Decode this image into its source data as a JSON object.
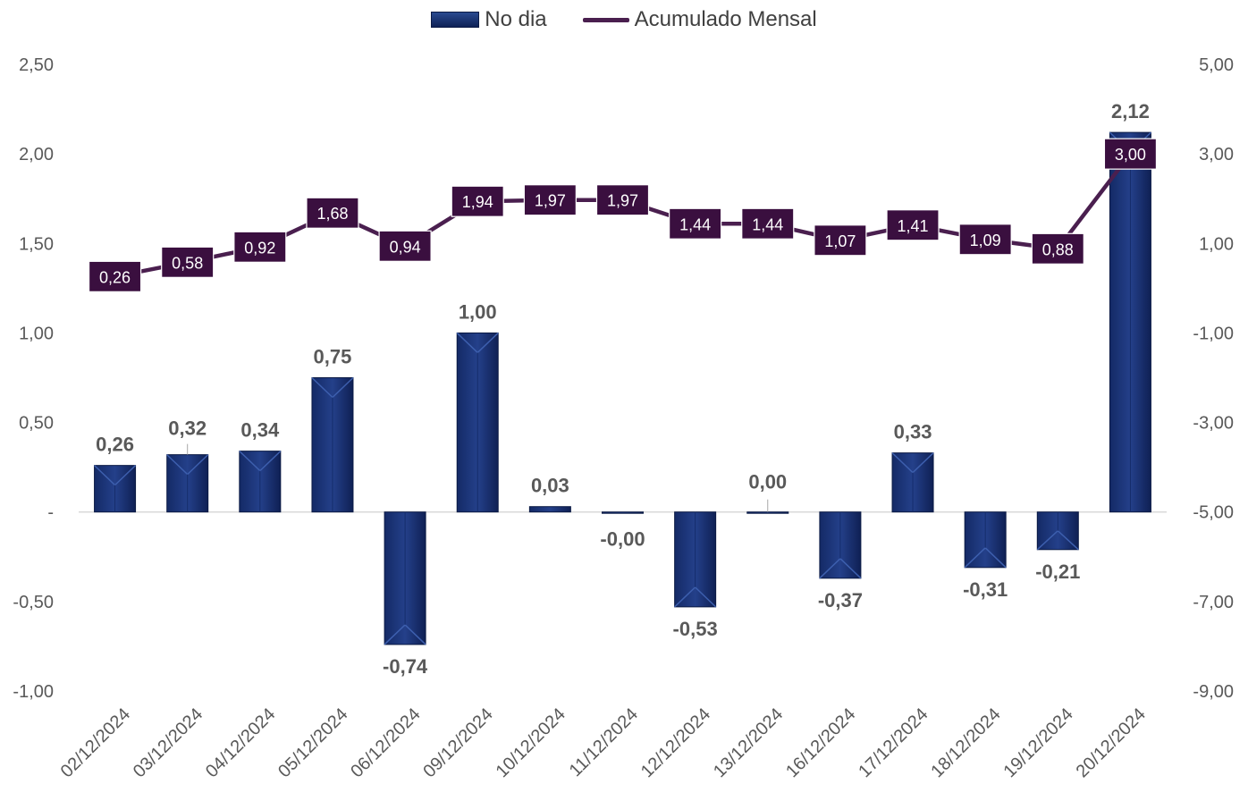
{
  "chart_data": {
    "type": "bar",
    "categories": [
      "02/12/2024",
      "03/12/2024",
      "04/12/2024",
      "05/12/2024",
      "06/12/2024",
      "09/12/2024",
      "10/12/2024",
      "11/12/2024",
      "12/12/2024",
      "13/12/2024",
      "16/12/2024",
      "17/12/2024",
      "18/12/2024",
      "19/12/2024",
      "20/12/2024"
    ],
    "series": [
      {
        "name": "No dia",
        "type": "bar",
        "axis": "left",
        "values": [
          0.26,
          0.32,
          0.34,
          0.75,
          -0.74,
          1.0,
          0.03,
          -0.005,
          -0.53,
          0.0,
          -0.37,
          0.33,
          -0.31,
          -0.21,
          2.12
        ],
        "labels": [
          "0,26",
          "0,32",
          "0,34",
          "0,75",
          "-0,74",
          "1,00",
          "0,03",
          "-0,00",
          "-0,53",
          "0,00",
          "-0,37",
          "0,33",
          "-0,31",
          "-0,21",
          "2,12"
        ],
        "color": "#1b3272"
      },
      {
        "name": "Acumulado Mensal",
        "type": "line",
        "axis": "right",
        "values": [
          0.26,
          0.58,
          0.92,
          1.68,
          0.94,
          1.94,
          1.97,
          1.97,
          1.44,
          1.44,
          1.07,
          1.41,
          1.09,
          0.88,
          3.0
        ],
        "labels": [
          "0,26",
          "0,58",
          "0,92",
          "1,68",
          "0,94",
          "1,94",
          "1,97",
          "1,97",
          "1,44",
          "1,44",
          "1,07",
          "1,41",
          "1,09",
          "0,88",
          "3,00"
        ],
        "color": "#4a1f4f"
      }
    ],
    "y_left": {
      "ylim": [
        -1.0,
        2.5
      ],
      "ticks": [
        2.5,
        2.0,
        1.5,
        1.0,
        0.5,
        0,
        -0.5,
        -1.0
      ],
      "tick_labels": [
        "2,50",
        "2,00",
        "1,50",
        "1,00",
        "0,50",
        "-",
        "-0,50",
        "-1,00"
      ]
    },
    "y_right": {
      "ylim": [
        -9.0,
        5.0
      ],
      "ticks": [
        5,
        3,
        1,
        -1,
        -3,
        -5,
        -7,
        -9
      ],
      "tick_labels": [
        "5,00",
        "3,00",
        "1,00",
        "-1,00",
        "-3,00",
        "-5,00",
        "-7,00",
        "-9,00"
      ]
    },
    "grid": false,
    "legend_position": "top-center"
  }
}
